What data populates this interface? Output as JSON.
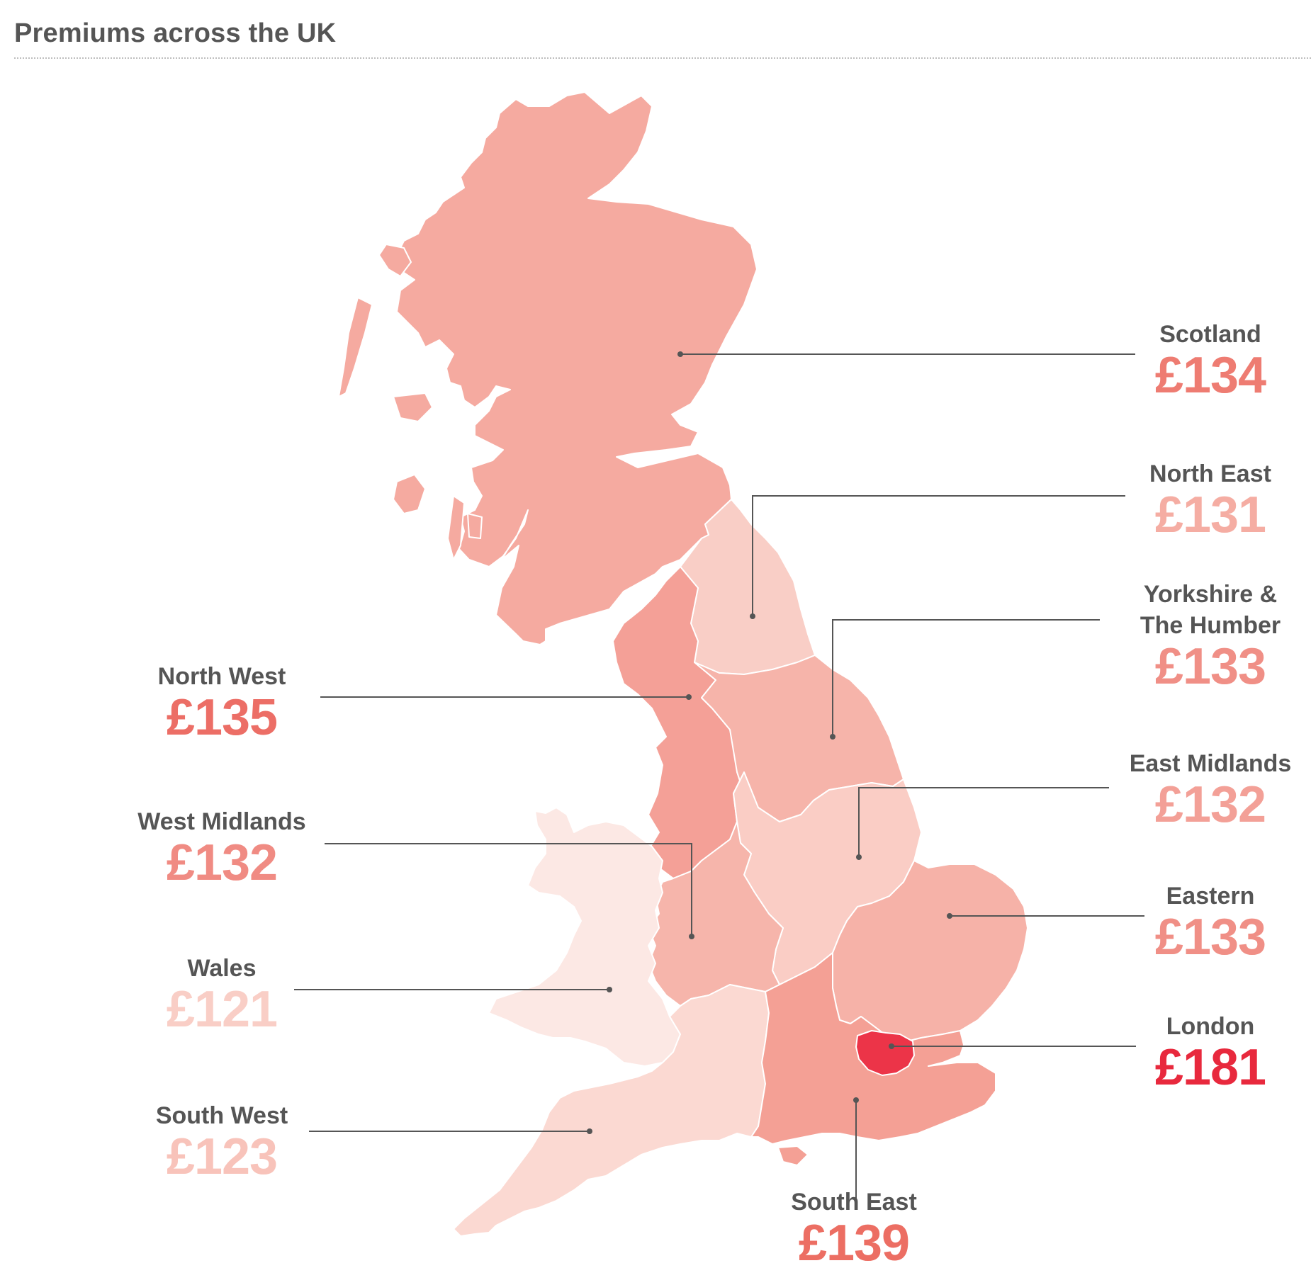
{
  "title": "Premiums across the UK",
  "colors": {
    "text": "#555555",
    "leader": "#555555",
    "land_background": "#f5aea1",
    "region_border": "#ffffff"
  },
  "regions": [
    {
      "id": "scotland",
      "name": "Scotland",
      "value": "£134",
      "amount": 134,
      "fill": "#f5aaa0",
      "value_color": "#ee7c72"
    },
    {
      "id": "north-east",
      "name": "North East",
      "value": "£131",
      "amount": 131,
      "fill": "#f9cec6",
      "value_color": "#f5ada3"
    },
    {
      "id": "yorkshire",
      "name": "Yorkshire &\nThe Humber",
      "value": "£133",
      "amount": 133,
      "fill": "#f6b4aa",
      "value_color": "#f08f86"
    },
    {
      "id": "north-west",
      "name": "North West",
      "value": "£135",
      "amount": 135,
      "fill": "#f4a097",
      "value_color": "#ec6e66"
    },
    {
      "id": "east-midlands",
      "name": "East Midlands",
      "value": "£132",
      "amount": 132,
      "fill": "#facdc5",
      "value_color": "#f3a097"
    },
    {
      "id": "west-midlands",
      "name": "West Midlands",
      "value": "£132",
      "amount": 132,
      "fill": "#f6b5ab",
      "value_color": "#f08b83"
    },
    {
      "id": "eastern",
      "name": "Eastern",
      "value": "£133",
      "amount": 133,
      "fill": "#f6b2a8",
      "value_color": "#f08f86"
    },
    {
      "id": "wales",
      "name": "Wales",
      "value": "£121",
      "amount": 121,
      "fill": "#fce8e4",
      "value_color": "#f9cec6"
    },
    {
      "id": "london",
      "name": "London",
      "value": "£181",
      "amount": 181,
      "fill": "#ec3448",
      "value_color": "#e8293d"
    },
    {
      "id": "south-west",
      "name": "South West",
      "value": "£123",
      "amount": 123,
      "fill": "#fbd9d2",
      "value_color": "#f8c3ba"
    },
    {
      "id": "south-east",
      "name": "South East",
      "value": "£139",
      "amount": 139,
      "fill": "#f4a095",
      "value_color": "#ec6e63"
    }
  ]
}
